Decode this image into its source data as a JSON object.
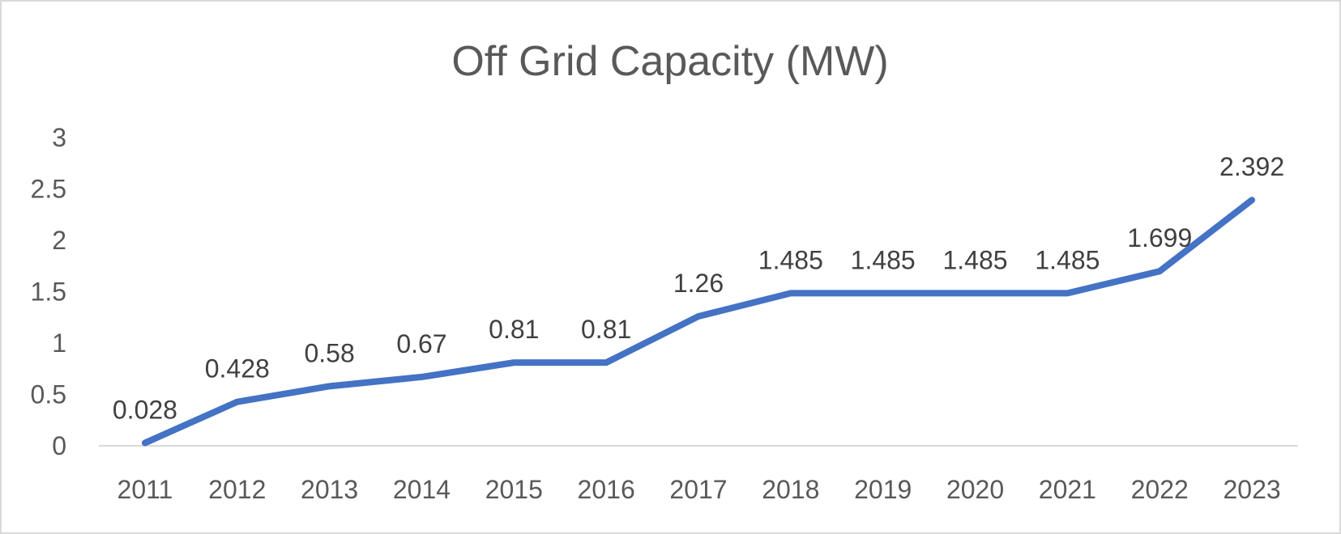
{
  "chart_data": {
    "type": "line",
    "title": "Off Grid Capacity (MW)",
    "xlabel": "",
    "ylabel": "",
    "categories": [
      "2011",
      "2012",
      "2013",
      "2014",
      "2015",
      "2016",
      "2017",
      "2018",
      "2019",
      "2020",
      "2021",
      "2022",
      "2023"
    ],
    "series": [
      {
        "name": "Off Grid Capacity (MW)",
        "color": "#4472C4",
        "values": [
          0.028,
          0.428,
          0.58,
          0.67,
          0.81,
          0.81,
          1.26,
          1.485,
          1.485,
          1.485,
          1.485,
          1.699,
          2.392
        ],
        "labels": [
          "0.028",
          "0.428",
          "0.58",
          "0.67",
          "0.81",
          "0.81",
          "1.26",
          "1.485",
          "1.485",
          "1.485",
          "1.485",
          "1.699",
          "2.392"
        ]
      }
    ],
    "ylim": [
      0,
      3
    ],
    "yticks": [
      "0",
      "0.5",
      "1",
      "1.5",
      "2",
      "2.5",
      "3"
    ],
    "grid": false,
    "legend": "none",
    "axis_color": "#d9d9d9"
  }
}
